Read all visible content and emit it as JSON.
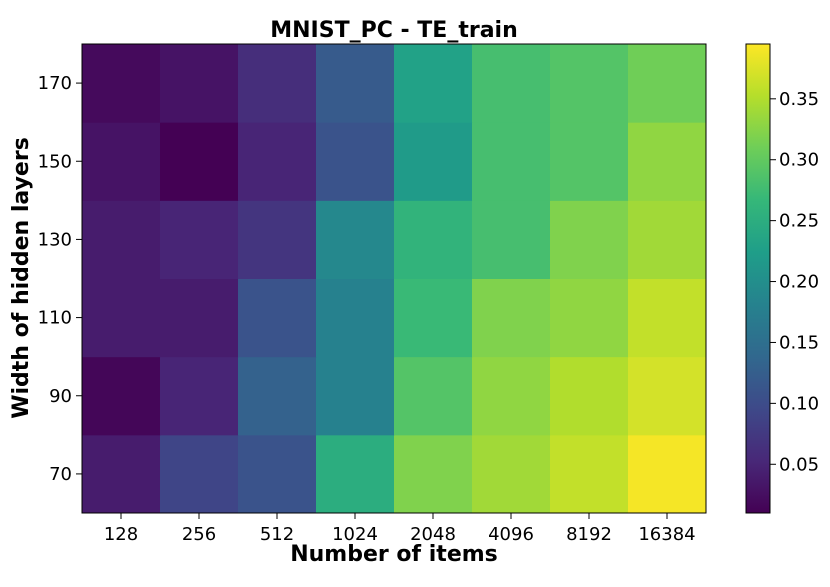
{
  "chart_data": {
    "type": "heatmap",
    "title": "MNIST_PC - TE_train",
    "xlabel": "Number of items",
    "ylabel": "Width of hidden layers",
    "x_categories": [
      "128",
      "256",
      "512",
      "1024",
      "2048",
      "4096",
      "8192",
      "16384"
    ],
    "y_categories": [
      "70",
      "90",
      "110",
      "130",
      "150",
      "170"
    ],
    "values": [
      [
        0.04,
        0.09,
        0.11,
        0.25,
        0.32,
        0.34,
        0.36,
        0.39
      ],
      [
        0.015,
        0.05,
        0.13,
        0.18,
        0.29,
        0.33,
        0.35,
        0.37
      ],
      [
        0.04,
        0.04,
        0.11,
        0.18,
        0.27,
        0.32,
        0.33,
        0.36
      ],
      [
        0.04,
        0.05,
        0.07,
        0.19,
        0.26,
        0.28,
        0.32,
        0.34
      ],
      [
        0.03,
        0.005,
        0.05,
        0.11,
        0.22,
        0.28,
        0.29,
        0.33
      ],
      [
        0.02,
        0.03,
        0.06,
        0.12,
        0.23,
        0.28,
        0.29,
        0.31
      ]
    ],
    "colormap": "viridis",
    "colorbar": {
      "min": 0.01,
      "max": 0.395,
      "ticks": [
        0.05,
        0.1,
        0.15,
        0.2,
        0.25,
        0.3,
        0.35
      ],
      "tick_labels": [
        "0.05",
        "0.10",
        "0.15",
        "0.20",
        "0.25",
        "0.30",
        "0.35"
      ]
    }
  }
}
